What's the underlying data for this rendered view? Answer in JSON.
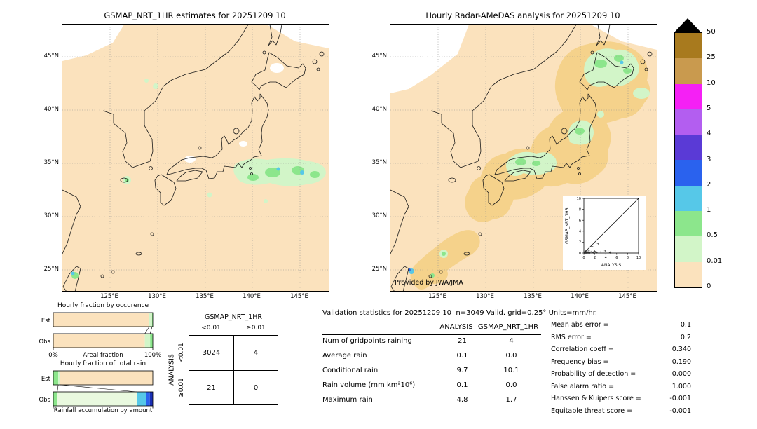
{
  "left_map": {
    "title": "GSMAP_NRT_1HR estimates for 20251209 10"
  },
  "right_map": {
    "title": "Hourly Radar-AMeDAS analysis for 20251209 10",
    "credit": "Provided by JWA/JMA"
  },
  "map_axes": {
    "lat_labels": [
      "45°N",
      "40°N",
      "35°N",
      "30°N",
      "25°N"
    ],
    "lon_labels": [
      "125°E",
      "130°E",
      "135°E",
      "140°E",
      "145°E"
    ]
  },
  "map_colors": {
    "background": "#fbe2bd",
    "radar_coverage": "#f5d28b",
    "no_data": "#ffffff"
  },
  "colorbar": {
    "labels_top_to_bottom": [
      "50",
      "25",
      "10",
      "5",
      "4",
      "3",
      "2",
      "1",
      "0.5",
      "0.01",
      "0"
    ],
    "band_colors_top_to_bottom": [
      "#a87a1e",
      "#c99a4e",
      "#f520f5",
      "#b35ef0",
      "#5a3ad6",
      "#2a62ee",
      "#56c8e8",
      "#8ce68c",
      "#d2f5c8",
      "#fbe2bd"
    ],
    "overflow_marker_color": "#000000",
    "units": "mm/hr"
  },
  "chart_data": [
    {
      "id": "occurrence_fractions",
      "type": "bar",
      "title": "Hourly fraction by occurence",
      "xlabel": "Areal fraction",
      "xlim_labels": [
        "0%",
        "100%"
      ],
      "categories": [
        "Est",
        "Obs"
      ],
      "bars": [
        {
          "label": "Est",
          "segments": [
            {
              "color": "#fbe2bd",
              "pct": 96.5
            },
            {
              "color": "#d2f5c8",
              "pct": 2.8
            },
            {
              "color": "#8ce68c",
              "pct": 0.7
            }
          ]
        },
        {
          "label": "Obs",
          "segments": [
            {
              "color": "#fbe2bd",
              "pct": 92.0
            },
            {
              "color": "#d2f5c8",
              "pct": 5.3
            },
            {
              "color": "#8ce68c",
              "pct": 2.7
            }
          ]
        }
      ],
      "connectors_pct": [
        [
          96.5,
          92.0
        ],
        [
          99.3,
          97.3
        ]
      ]
    },
    {
      "id": "total_rain_fractions",
      "type": "bar",
      "title": "Hourly fraction of total rain",
      "xlabel": "Rainfall accumulation by amount",
      "categories": [
        "Est",
        "Obs"
      ],
      "bars": [
        {
          "label": "Est",
          "segments": [
            {
              "color": "#8ce68c",
              "pct": 5
            },
            {
              "color": "#d2f5c8",
              "pct": 2
            },
            {
              "color": "#fbe2bd",
              "pct": 93
            }
          ]
        },
        {
          "label": "Obs",
          "segments": [
            {
              "color": "#8ce68c",
              "pct": 4
            },
            {
              "color": "#e9f9df",
              "pct": 80
            },
            {
              "color": "#56c8e8",
              "pct": 9
            },
            {
              "color": "#2a62ee",
              "pct": 4
            },
            {
              "color": "#1a2fb4",
              "pct": 3
            }
          ]
        }
      ],
      "connectors_pct": [
        [
          5,
          4
        ],
        [
          7,
          84
        ]
      ]
    },
    {
      "id": "scatter_inset",
      "type": "scatter",
      "xlabel": "ANALYSIS",
      "ylabel": "GSMAP_NRT_1HR",
      "xlim": [
        0,
        10
      ],
      "ylim": [
        0,
        10
      ],
      "ticks": [
        0,
        2,
        4,
        6,
        8,
        10
      ],
      "diagonal": true,
      "points": [
        [
          0.1,
          0.0
        ],
        [
          0.2,
          0.1
        ],
        [
          0.3,
          0.0
        ],
        [
          0.3,
          0.3
        ],
        [
          0.4,
          0.1
        ],
        [
          0.5,
          0.0
        ],
        [
          0.6,
          0.2
        ],
        [
          0.7,
          0.1
        ],
        [
          0.8,
          0.0
        ],
        [
          0.9,
          0.4
        ],
        [
          1.0,
          0.1
        ],
        [
          1.1,
          0.0
        ],
        [
          1.3,
          0.2
        ],
        [
          1.5,
          1.2
        ],
        [
          1.7,
          0.1
        ],
        [
          2.0,
          0.3
        ],
        [
          2.3,
          0.1
        ],
        [
          2.6,
          1.7
        ],
        [
          3.1,
          0.2
        ],
        [
          3.9,
          0.4
        ],
        [
          4.8,
          0.1
        ]
      ]
    }
  ],
  "contingency": {
    "col_axis": "GSMAP_NRT_1HR",
    "row_axis": "ANALYSIS",
    "col_labels": [
      "<0.01",
      "≥0.01"
    ],
    "row_labels": [
      "<0.01",
      "≥0.01"
    ],
    "values": [
      [
        3024,
        4
      ],
      [
        21,
        0
      ]
    ]
  },
  "validation": {
    "header": "Validation statistics for 20251209 10  n=3049 Valid. grid=0.25° Units=mm/hr.",
    "columns": [
      "ANALYSIS",
      "GSMAP_NRT_1HR"
    ],
    "rows": [
      {
        "label": "Num of gridpoints raining",
        "analysis": "21",
        "gsmap": "4"
      },
      {
        "label": "Average rain",
        "analysis": "0.1",
        "gsmap": "0.0"
      },
      {
        "label": "Conditional rain",
        "analysis": "9.7",
        "gsmap": "10.1"
      },
      {
        "label": "Rain volume (mm km²10⁶)",
        "analysis": "0.1",
        "gsmap": "0.0"
      },
      {
        "label": "Maximum rain",
        "analysis": "4.8",
        "gsmap": "1.7"
      }
    ],
    "metrics": [
      {
        "label": "Mean abs error",
        "value": "0.1"
      },
      {
        "label": "RMS error",
        "value": "0.2"
      },
      {
        "label": "Correlation coeff",
        "value": "0.340"
      },
      {
        "label": "Frequency bias",
        "value": "0.190"
      },
      {
        "label": "Probability of detection",
        "value": "0.000"
      },
      {
        "label": "False alarm ratio",
        "value": "1.000"
      },
      {
        "label": "Hanssen & Kuipers score",
        "value": "-0.001"
      },
      {
        "label": "Equitable threat score",
        "value": "-0.001"
      }
    ]
  }
}
